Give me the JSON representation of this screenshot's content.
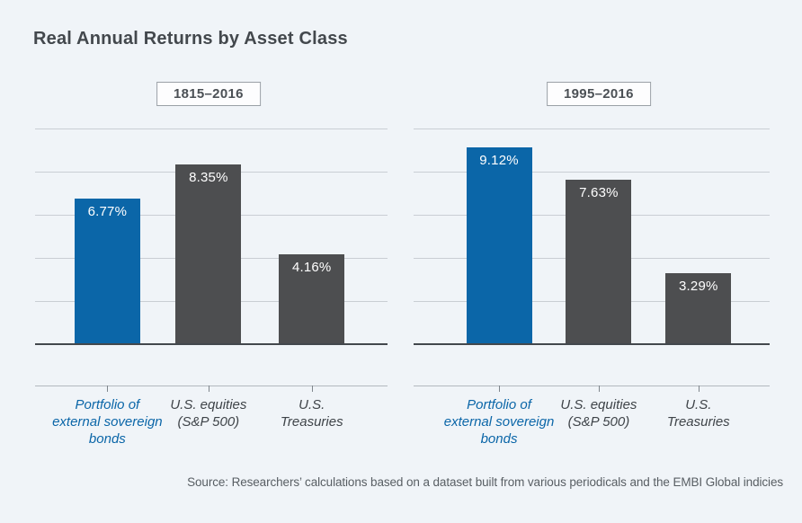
{
  "title": "Real Annual Returns by Asset Class",
  "source": "Source: Researchers’ calculations based on a dataset built from various periodicals and the EMBI Global indicies",
  "colors": {
    "background": "#f0f4f8",
    "highlight_bar": "#0b66a8",
    "default_bar": "#4d4e50",
    "value_label_text": "#ffffff",
    "highlight_category_text": "#0b66a8",
    "category_text": "#3f4449"
  },
  "chart_data": [
    {
      "type": "bar",
      "title": "1815–2016",
      "categories": [
        "Portfolio of external sovereign bonds",
        "U.S. equities (S&P 500)",
        "U.S. Treasuries"
      ],
      "category_lines": [
        [
          "Portfolio of",
          "external sovereign",
          "bonds"
        ],
        [
          "U.S. equities",
          "(S&P 500)"
        ],
        [
          "U.S.",
          "Treasuries"
        ]
      ],
      "values": [
        6.77,
        8.35,
        4.16
      ],
      "value_labels": [
        "6.77%",
        "8.35%",
        "4.16%"
      ],
      "ylim": [
        0,
        10
      ],
      "gridline_step": 2,
      "grid": true,
      "highlight_index": 0,
      "legend": "none",
      "xlabel": "",
      "ylabel": ""
    },
    {
      "type": "bar",
      "title": "1995–2016",
      "categories": [
        "Portfolio of external sovereign bonds",
        "U.S. equities (S&P 500)",
        "U.S. Treasuries"
      ],
      "category_lines": [
        [
          "Portfolio of",
          "external sovereign",
          "bonds"
        ],
        [
          "U.S. equities",
          "(S&P 500)"
        ],
        [
          "U.S.",
          "Treasuries"
        ]
      ],
      "values": [
        9.12,
        7.63,
        3.29
      ],
      "value_labels": [
        "9.12%",
        "7.63%",
        "3.29%"
      ],
      "ylim": [
        0,
        10
      ],
      "gridline_step": 2,
      "grid": true,
      "highlight_index": 0,
      "legend": "none",
      "xlabel": "",
      "ylabel": ""
    }
  ]
}
